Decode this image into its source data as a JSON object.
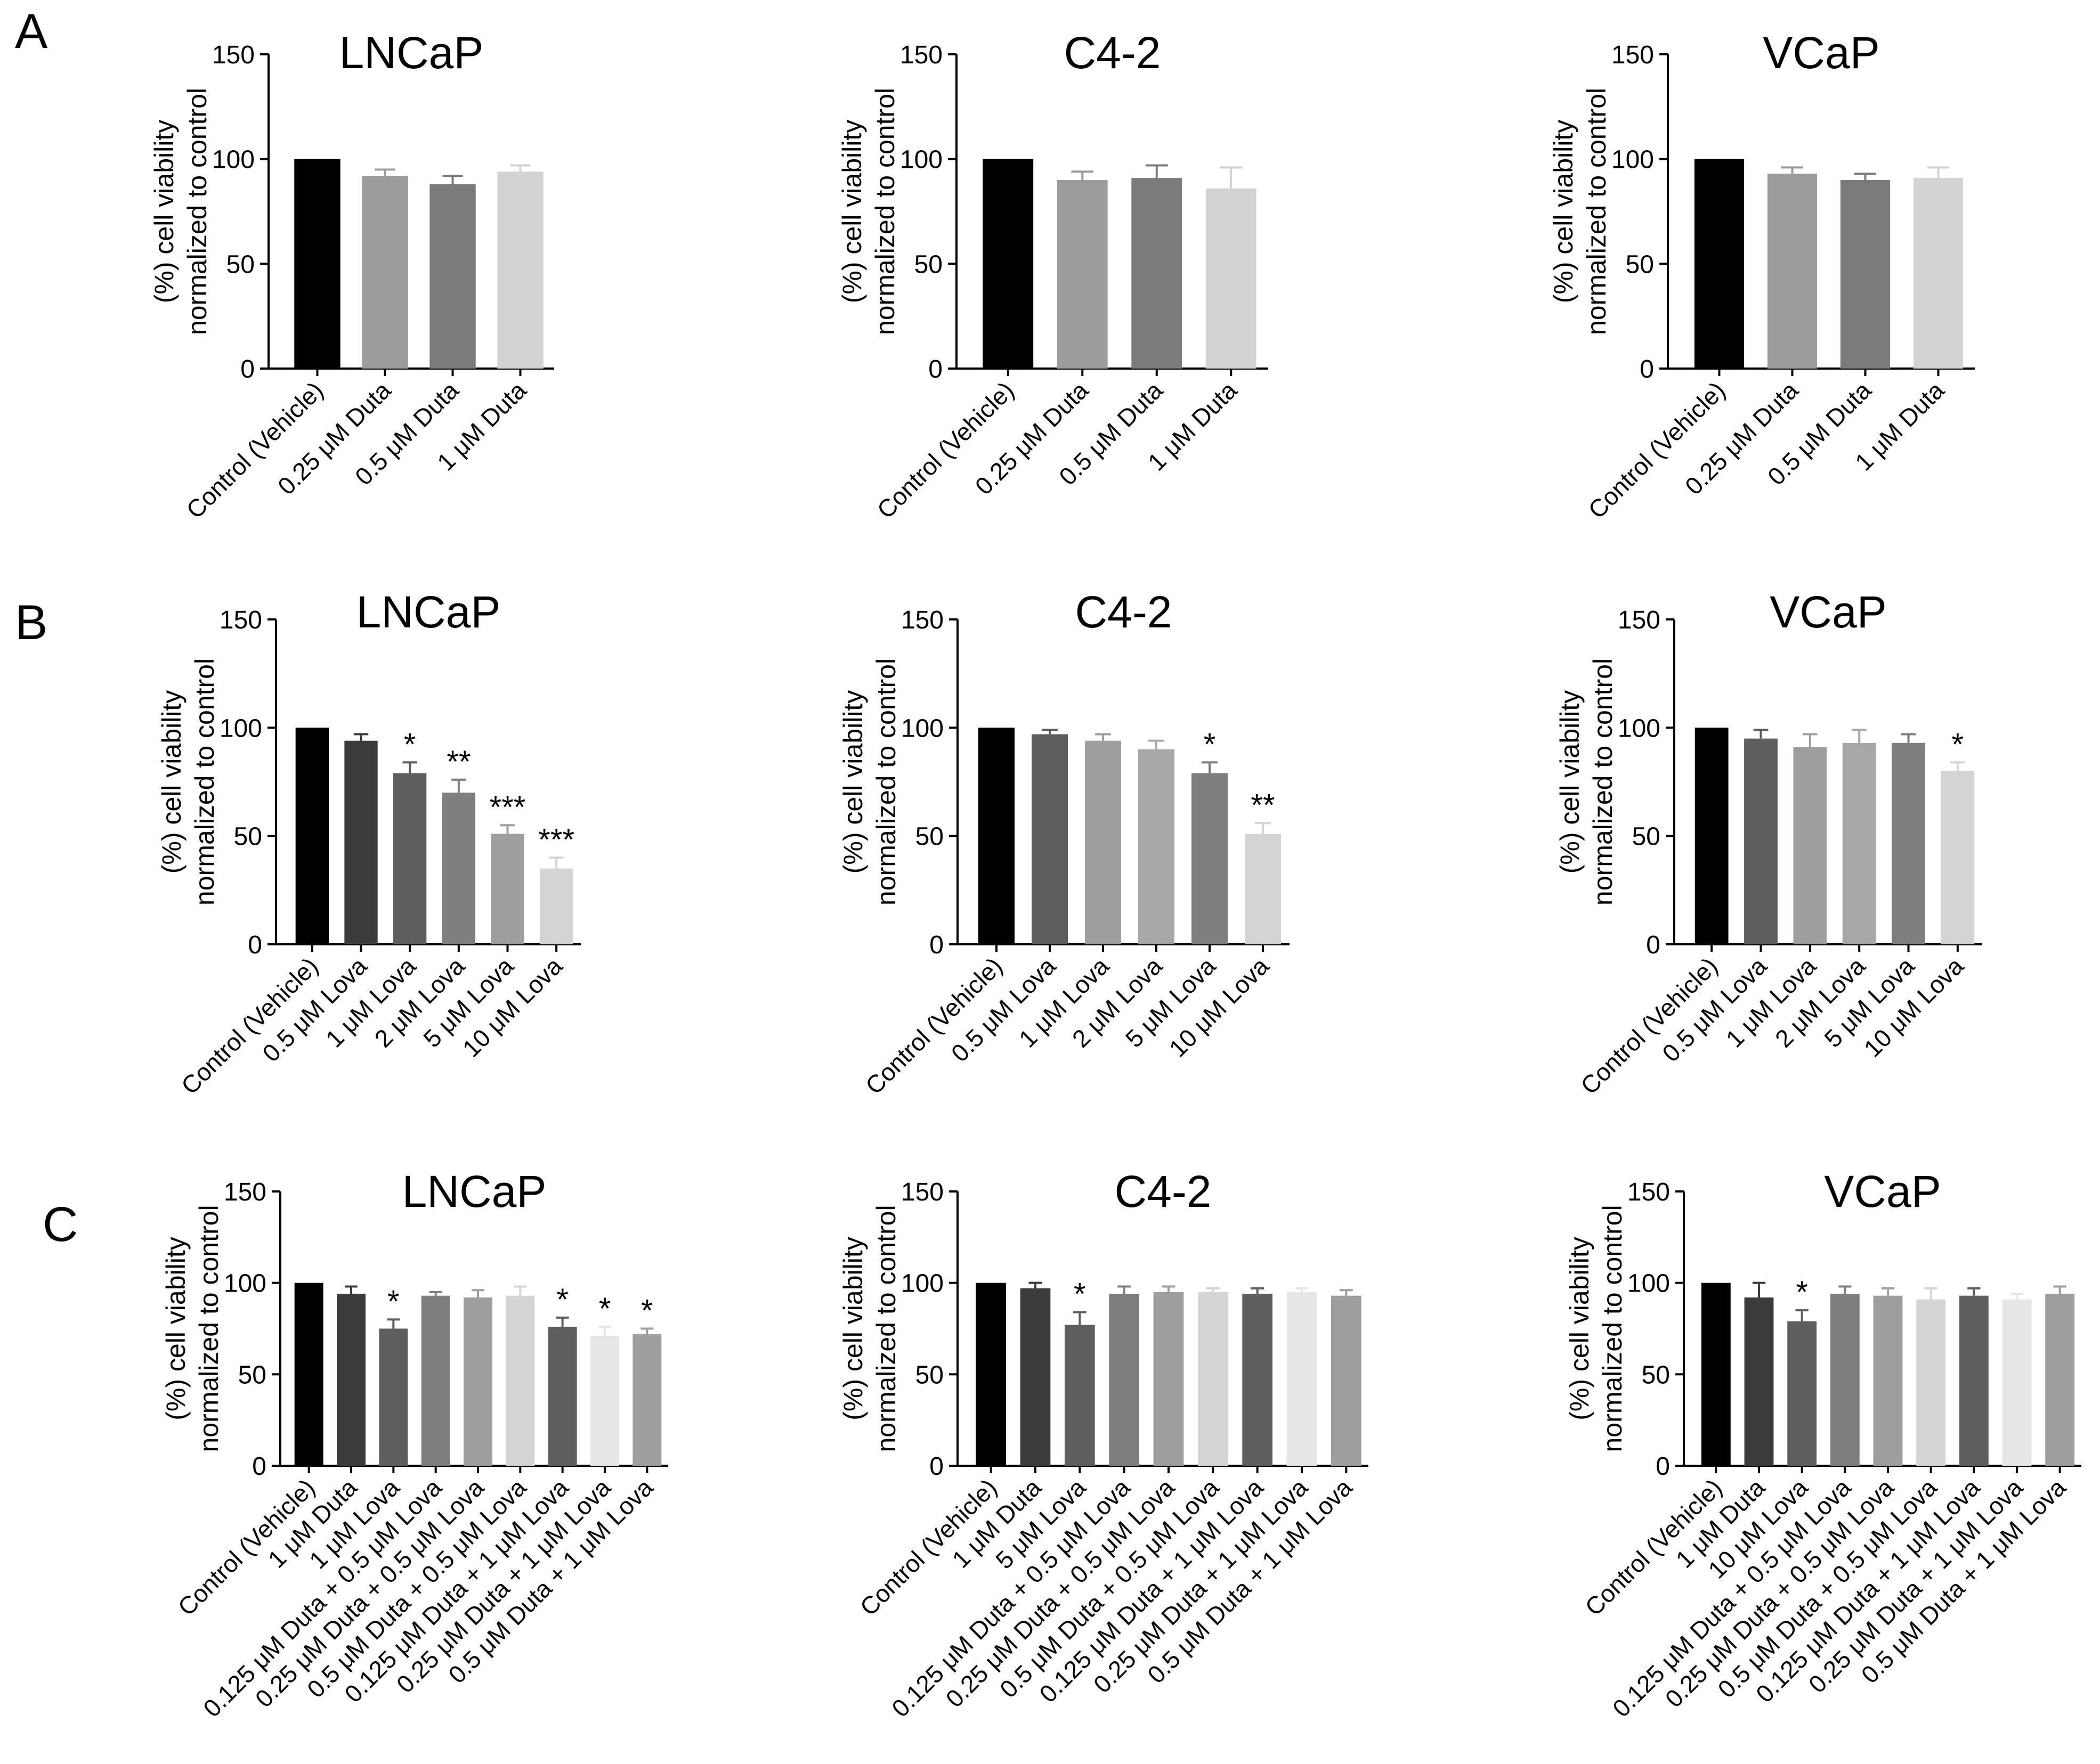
{
  "figure": {
    "rows": [
      {
        "label": "A",
        "charts": [
          {
            "type": "bar",
            "title": "LNCaP",
            "ylabel": "(%) cell viability\nnormalized to control",
            "ylim": [
              0,
              150
            ],
            "yticks": [
              0,
              50,
              100,
              150
            ],
            "categories": [
              "Control (Vehicle)",
              "0.25 μM Duta",
              "0.5 μM Duta",
              "1 μM Duta"
            ],
            "values": [
              100,
              92,
              88,
              94
            ],
            "errors": [
              0,
              3,
              4,
              3
            ],
            "significance": [
              "",
              "",
              "",
              ""
            ],
            "colors": [
              "#000000",
              "#9c9c9c",
              "#7b7b7b",
              "#d3d3d3"
            ]
          },
          {
            "type": "bar",
            "title": "C4-2",
            "ylabel": "(%) cell viability\nnormalized to control",
            "ylim": [
              0,
              150
            ],
            "yticks": [
              0,
              50,
              100,
              150
            ],
            "categories": [
              "Control (Vehicle)",
              "0.25 μM Duta",
              "0.5 μM Duta",
              "1 μM Duta"
            ],
            "values": [
              100,
              90,
              91,
              86
            ],
            "errors": [
              0,
              4,
              6,
              10
            ],
            "significance": [
              "",
              "",
              "",
              ""
            ],
            "colors": [
              "#000000",
              "#9c9c9c",
              "#7b7b7b",
              "#d3d3d3"
            ]
          },
          {
            "type": "bar",
            "title": "VCaP",
            "ylabel": "(%) cell viability\nnormalized to control",
            "ylim": [
              0,
              150
            ],
            "yticks": [
              0,
              50,
              100,
              150
            ],
            "categories": [
              "Control (Vehicle)",
              "0.25 μM Duta",
              "0.5 μM Duta",
              "1 μM Duta"
            ],
            "values": [
              100,
              93,
              90,
              91
            ],
            "errors": [
              0,
              3,
              3,
              5
            ],
            "significance": [
              "",
              "",
              "",
              ""
            ],
            "colors": [
              "#000000",
              "#9c9c9c",
              "#7b7b7b",
              "#d3d3d3"
            ]
          }
        ]
      },
      {
        "label": "B",
        "charts": [
          {
            "type": "bar",
            "title": "LNCaP",
            "ylabel": "(%) cell viability\nnormalized to control",
            "ylim": [
              0,
              150
            ],
            "yticks": [
              0,
              50,
              100,
              150
            ],
            "categories": [
              "Control (Vehicle)",
              "0.5 μM Lova",
              "1 μM Lova",
              "2 μM Lova",
              "5 μM Lova",
              "10 μM Lova"
            ],
            "values": [
              100,
              94,
              79,
              70,
              51,
              35
            ],
            "errors": [
              0,
              3,
              5,
              6,
              4,
              5
            ],
            "significance": [
              "",
              "",
              "*",
              "**",
              "***",
              "***"
            ],
            "colors": [
              "#000000",
              "#3b3b3b",
              "#5e5e5e",
              "#7e7e7e",
              "#9e9e9e",
              "#d4d4d4"
            ]
          },
          {
            "type": "bar",
            "title": "C4-2",
            "ylabel": "(%) cell viability\nnormalized to control",
            "ylim": [
              0,
              150
            ],
            "yticks": [
              0,
              50,
              100,
              150
            ],
            "categories": [
              "Control (Vehicle)",
              "0.5 μM Lova",
              "1 μM Lova",
              "2 μM Lova",
              "5 μM Lova",
              "10 μM Lova"
            ],
            "values": [
              100,
              97,
              94,
              90,
              79,
              51
            ],
            "errors": [
              0,
              2,
              3,
              4,
              5,
              5
            ],
            "significance": [
              "",
              "",
              "",
              "",
              "*",
              "**"
            ],
            "colors": [
              "#000000",
              "#5e5e5e",
              "#9e9e9e",
              "#a8a8a8",
              "#7e7e7e",
              "#d4d4d4"
            ]
          },
          {
            "type": "bar",
            "title": "VCaP",
            "ylabel": "(%) cell viability\nnormalized to control",
            "ylim": [
              0,
              150
            ],
            "yticks": [
              0,
              50,
              100,
              150
            ],
            "categories": [
              "Control (Vehicle)",
              "0.5 μM Lova",
              "1 μM Lova",
              "2 μM Lova",
              "5 μM Lova",
              "10 μM Lova"
            ],
            "values": [
              100,
              95,
              91,
              93,
              93,
              80
            ],
            "errors": [
              0,
              4,
              6,
              6,
              4,
              4
            ],
            "significance": [
              "",
              "",
              "",
              "",
              "",
              "*"
            ],
            "colors": [
              "#000000",
              "#5e5e5e",
              "#9e9e9e",
              "#a8a8a8",
              "#7e7e7e",
              "#d4d4d4"
            ]
          }
        ]
      },
      {
        "label": "C",
        "charts": [
          {
            "type": "bar",
            "title": "LNCaP",
            "ylabel": "(%) cell viability\nnormalized to control",
            "ylim": [
              0,
              150
            ],
            "yticks": [
              0,
              50,
              100,
              150
            ],
            "categories": [
              "Control (Vehicle)",
              "1 μM Duta",
              "1 μM Lova",
              "0.125 μM Duta + 0.5 μM Lova",
              "0.25 μM Duta + 0.5 μM Lova",
              "0.5 μM Duta + 0.5 μM Lova",
              "0.125 μM Duta + 1 μM Lova",
              "0.25 μM Duta + 1 μM Lova",
              "0.5 μM Duta + 1 μM Lova"
            ],
            "values": [
              100,
              94,
              75,
              93,
              92,
              93,
              76,
              71,
              72
            ],
            "errors": [
              0,
              4,
              5,
              2,
              4,
              5,
              5,
              5,
              3
            ],
            "significance": [
              "",
              "",
              "*",
              "",
              "",
              "",
              "*",
              "*",
              "*"
            ],
            "colors": [
              "#000000",
              "#3b3b3b",
              "#5e5e5e",
              "#7e7e7e",
              "#9e9e9e",
              "#d4d4d4",
              "#5e5e5e",
              "#e6e6e6",
              "#9e9e9e"
            ]
          },
          {
            "type": "bar",
            "title": "C4-2",
            "ylabel": "(%) cell viability\nnormalized to control",
            "ylim": [
              0,
              150
            ],
            "yticks": [
              0,
              50,
              100,
              150
            ],
            "categories": [
              "Control (Vehicle)",
              "1 μM Duta",
              "5 μM Lova",
              "0.125 μM Duta + 0.5 μM Lova",
              "0.25 μM Duta + 0.5 μM Lova",
              "0.5 μM Duta + 0.5 μM Lova",
              "0.125 μM Duta + 1 μM Lova",
              "0.25 μM Duta + 1 μM Lova",
              "0.5 μM Duta + 1 μM Lova"
            ],
            "values": [
              100,
              97,
              77,
              94,
              95,
              95,
              94,
              95,
              93
            ],
            "errors": [
              0,
              3,
              7,
              4,
              3,
              2,
              3,
              2,
              3
            ],
            "significance": [
              "",
              "",
              "*",
              "",
              "",
              "",
              "",
              "",
              ""
            ],
            "colors": [
              "#000000",
              "#3b3b3b",
              "#5e5e5e",
              "#7e7e7e",
              "#9e9e9e",
              "#d4d4d4",
              "#5e5e5e",
              "#e6e6e6",
              "#9e9e9e"
            ]
          },
          {
            "type": "bar",
            "title": "VCaP",
            "ylabel": "(%) cell viability\nnormalized to control",
            "ylim": [
              0,
              150
            ],
            "yticks": [
              0,
              50,
              100,
              150
            ],
            "categories": [
              "Control (Vehicle)",
              "1 μM Duta",
              "10 μM Lova",
              "0.125 μM Duta + 0.5 μM Lova",
              "0.25 μM Duta + 0.5 μM Lova",
              "0.5 μM Duta + 0.5 μM Lova",
              "0.125 μM Duta + 1 μM Lova",
              "0.25 μM Duta + 1 μM Lova",
              "0.5 μM Duta + 1 μM Lova"
            ],
            "values": [
              100,
              92,
              79,
              94,
              93,
              91,
              93,
              91,
              94
            ],
            "errors": [
              0,
              8,
              6,
              4,
              4,
              6,
              4,
              3,
              4
            ],
            "significance": [
              "",
              "",
              "*",
              "",
              "",
              "",
              "",
              "",
              ""
            ],
            "colors": [
              "#000000",
              "#3b3b3b",
              "#5e5e5e",
              "#7e7e7e",
              "#9e9e9e",
              "#d4d4d4",
              "#5e5e5e",
              "#e6e6e6",
              "#9e9e9e"
            ]
          }
        ]
      }
    ]
  }
}
